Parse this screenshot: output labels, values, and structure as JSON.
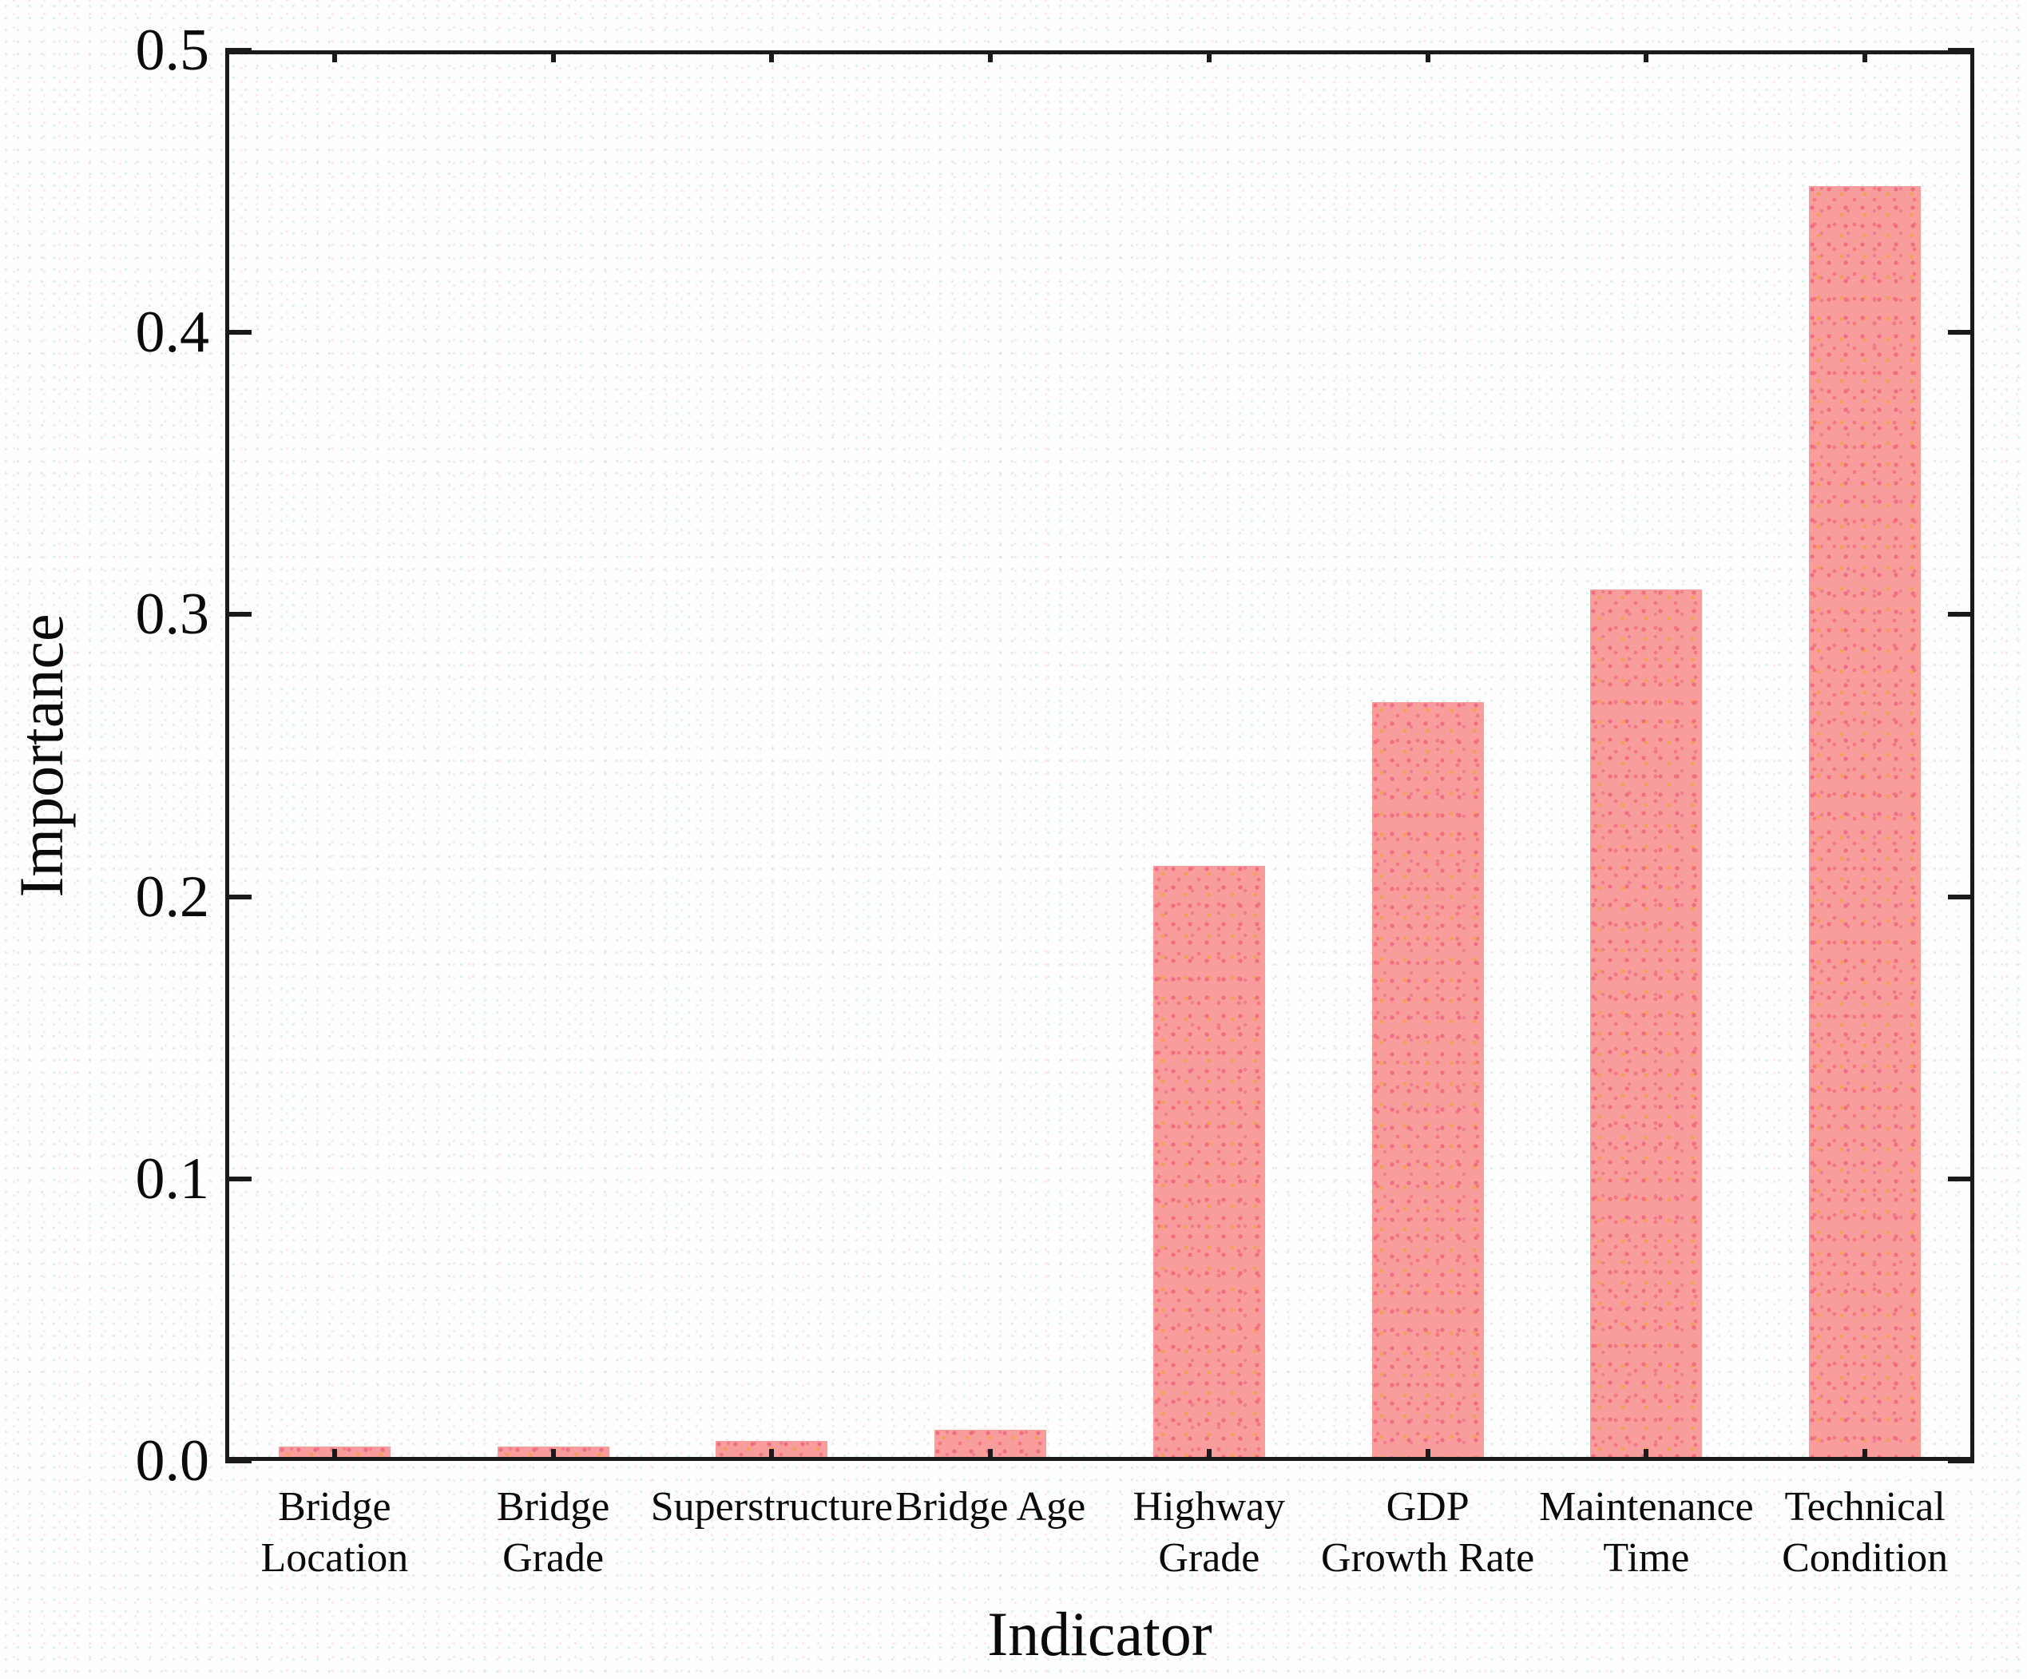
{
  "chart_data": {
    "type": "bar",
    "title": "",
    "xlabel": "Indicator",
    "ylabel": "Importance",
    "categories": [
      "Bridge Location",
      "Bridge Grade",
      "Superstructure",
      "Bridge Age",
      "Highway Grade",
      "GDP Growth Rate",
      "Maintenance Time",
      "Technical Condition"
    ],
    "category_label_lines": [
      [
        "Bridge",
        "Location"
      ],
      [
        "Bridge",
        "Grade"
      ],
      [
        "Superstructure"
      ],
      [
        "Bridge Age"
      ],
      [
        "Highway",
        "Grade"
      ],
      [
        "GDP",
        "Growth Rate"
      ],
      [
        "Maintenance",
        "Time"
      ],
      [
        "Technical",
        "Condition"
      ]
    ],
    "values": [
      0.005,
      0.005,
      0.007,
      0.011,
      0.211,
      0.269,
      0.309,
      0.452
    ],
    "ylim": [
      0,
      0.5
    ],
    "yticks": [
      "0.0",
      "0.1",
      "0.2",
      "0.3",
      "0.4",
      "0.5"
    ],
    "grid": false,
    "legend": "none",
    "colors": {
      "bar_fill": "#f89c9c",
      "bar_dot_primary": "#ef6d80",
      "bar_dot_secondary": "#f5a058",
      "frame": "#1a1a1a",
      "text": "#0a0a0a",
      "background": "#fefefe"
    }
  }
}
